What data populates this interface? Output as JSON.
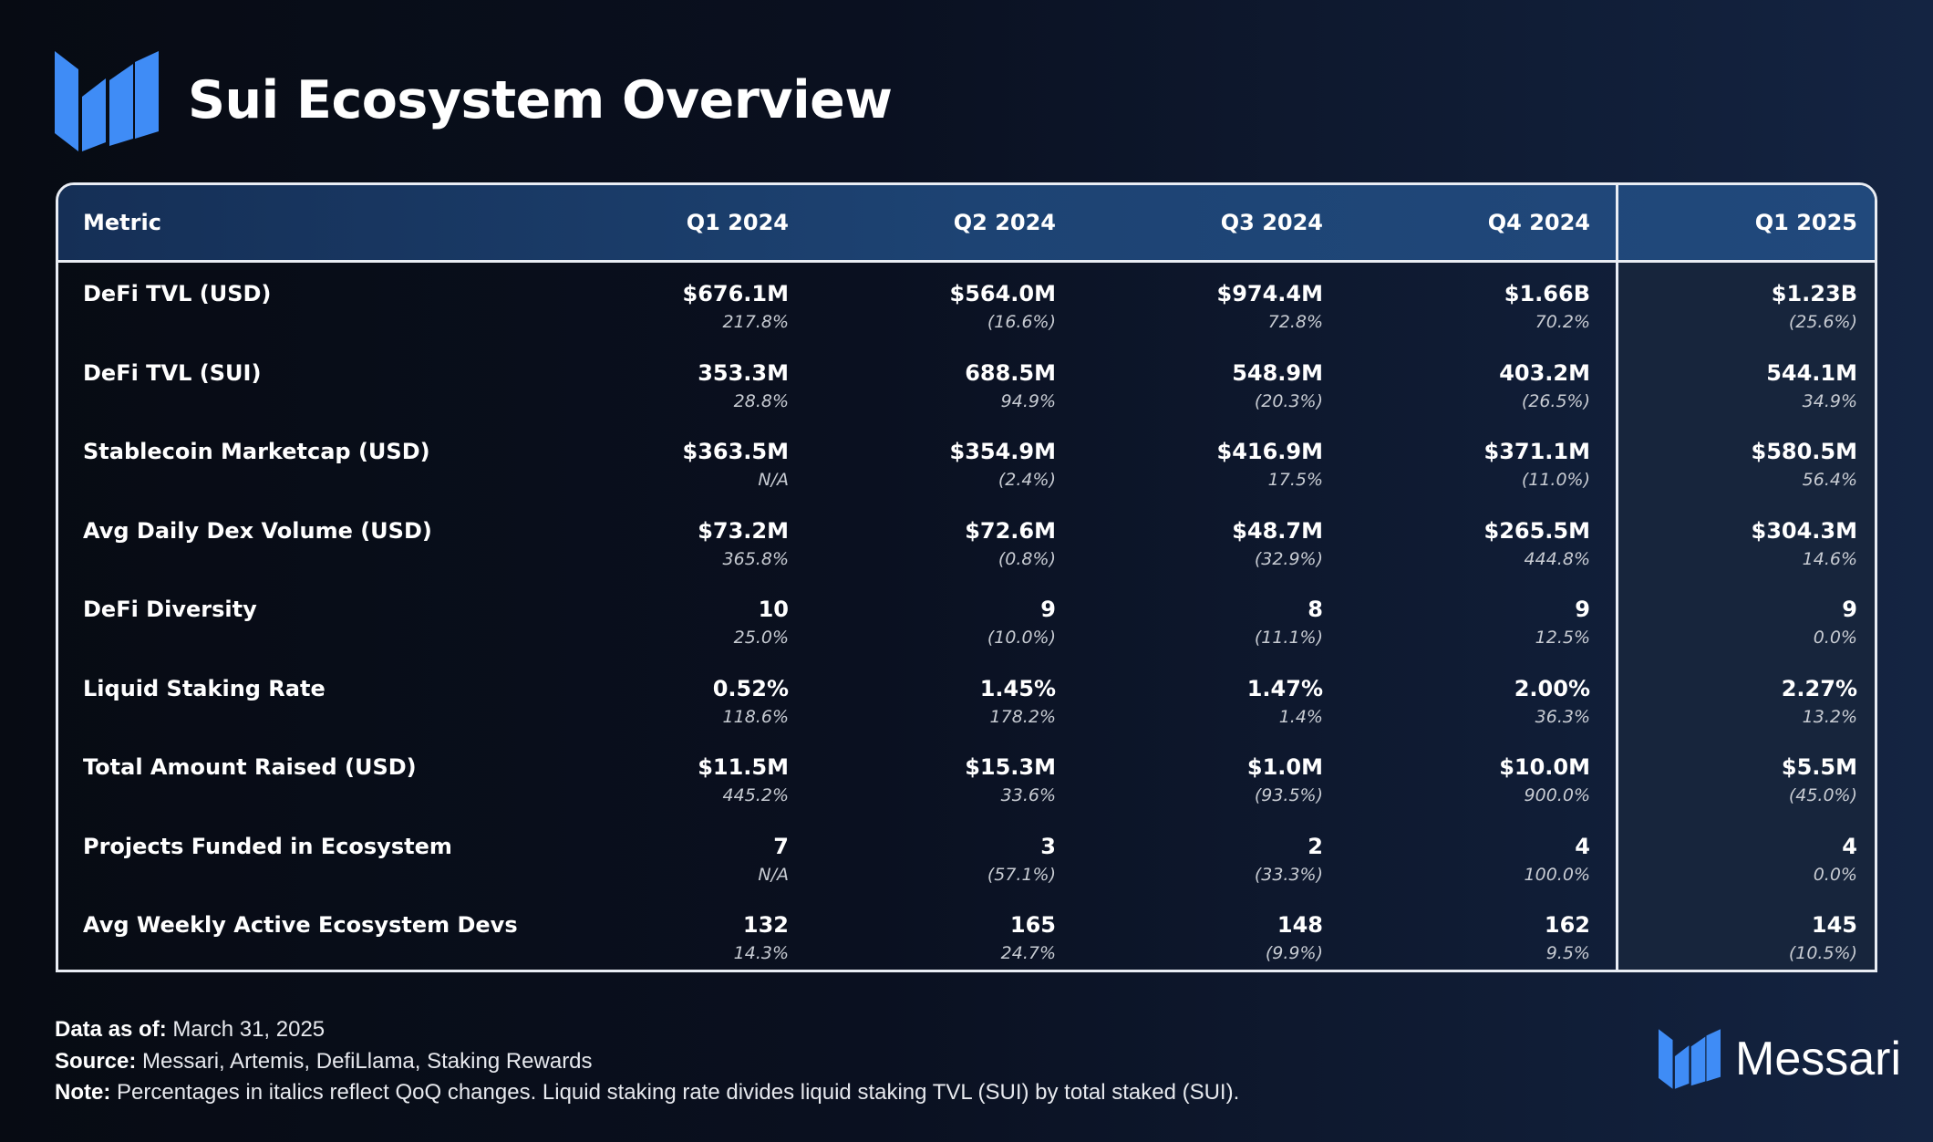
{
  "title": "Sui Ecosystem Overview",
  "brand": {
    "name": "Messari",
    "accent_color": "#3f8cf6",
    "icon": "messari-logo-icon"
  },
  "colors": {
    "header_bar": "#1d4373",
    "highlight_column": "#17253c",
    "background": "#0a1020"
  },
  "chart_data": {
    "type": "table",
    "columns": [
      "Metric",
      "Q1 2024",
      "Q2 2024",
      "Q3 2024",
      "Q4 2024",
      "Q1 2025"
    ],
    "highlighted_column": "Q1 2025",
    "rows": [
      {
        "metric": "DeFi TVL (USD)",
        "cells": [
          {
            "value": "$676.1M",
            "change": "217.8%"
          },
          {
            "value": "$564.0M",
            "change": "(16.6%)"
          },
          {
            "value": "$974.4M",
            "change": "72.8%"
          },
          {
            "value": "$1.66B",
            "change": "70.2%"
          },
          {
            "value": "$1.23B",
            "change": "(25.6%)"
          }
        ]
      },
      {
        "metric": "DeFi TVL (SUI)",
        "cells": [
          {
            "value": "353.3M",
            "change": "28.8%"
          },
          {
            "value": "688.5M",
            "change": "94.9%"
          },
          {
            "value": "548.9M",
            "change": "(20.3%)"
          },
          {
            "value": "403.2M",
            "change": "(26.5%)"
          },
          {
            "value": "544.1M",
            "change": "34.9%"
          }
        ]
      },
      {
        "metric": "Stablecoin Marketcap (USD)",
        "cells": [
          {
            "value": "$363.5M",
            "change": "N/A"
          },
          {
            "value": "$354.9M",
            "change": "(2.4%)"
          },
          {
            "value": "$416.9M",
            "change": "17.5%"
          },
          {
            "value": "$371.1M",
            "change": "(11.0%)"
          },
          {
            "value": "$580.5M",
            "change": "56.4%"
          }
        ]
      },
      {
        "metric": "Avg Daily Dex Volume (USD)",
        "cells": [
          {
            "value": "$73.2M",
            "change": "365.8%"
          },
          {
            "value": "$72.6M",
            "change": "(0.8%)"
          },
          {
            "value": "$48.7M",
            "change": "(32.9%)"
          },
          {
            "value": "$265.5M",
            "change": "444.8%"
          },
          {
            "value": "$304.3M",
            "change": "14.6%"
          }
        ]
      },
      {
        "metric": "DeFi Diversity",
        "cells": [
          {
            "value": "10",
            "change": "25.0%"
          },
          {
            "value": "9",
            "change": "(10.0%)"
          },
          {
            "value": "8",
            "change": "(11.1%)"
          },
          {
            "value": "9",
            "change": "12.5%"
          },
          {
            "value": "9",
            "change": "0.0%"
          }
        ]
      },
      {
        "metric": "Liquid Staking Rate",
        "cells": [
          {
            "value": "0.52%",
            "change": "118.6%"
          },
          {
            "value": "1.45%",
            "change": "178.2%"
          },
          {
            "value": "1.47%",
            "change": "1.4%"
          },
          {
            "value": "2.00%",
            "change": "36.3%"
          },
          {
            "value": "2.27%",
            "change": "13.2%"
          }
        ]
      },
      {
        "metric": "Total Amount Raised (USD)",
        "cells": [
          {
            "value": "$11.5M",
            "change": "445.2%"
          },
          {
            "value": "$15.3M",
            "change": "33.6%"
          },
          {
            "value": "$1.0M",
            "change": "(93.5%)"
          },
          {
            "value": "$10.0M",
            "change": "900.0%"
          },
          {
            "value": "$5.5M",
            "change": "(45.0%)"
          }
        ]
      },
      {
        "metric": "Projects Funded in Ecosystem",
        "cells": [
          {
            "value": "7",
            "change": "N/A"
          },
          {
            "value": "3",
            "change": "(57.1%)"
          },
          {
            "value": "2",
            "change": "(33.3%)"
          },
          {
            "value": "4",
            "change": "100.0%"
          },
          {
            "value": "4",
            "change": "0.0%"
          }
        ]
      },
      {
        "metric": "Avg Weekly Active Ecosystem Devs",
        "cells": [
          {
            "value": "132",
            "change": "14.3%"
          },
          {
            "value": "165",
            "change": "24.7%"
          },
          {
            "value": "148",
            "change": "(9.9%)"
          },
          {
            "value": "162",
            "change": "9.5%"
          },
          {
            "value": "145",
            "change": "(10.5%)"
          }
        ]
      }
    ]
  },
  "footer": {
    "data_as_of_label": "Data as of:",
    "data_as_of_value": "March 31, 2025",
    "source_label": "Source:",
    "source_value": "Messari, Artemis, DefiLlama, Staking Rewards",
    "note_label": "Note:",
    "note_value": "Percentages in italics reflect QoQ changes. Liquid staking rate divides liquid staking TVL (SUI) by total staked (SUI)."
  }
}
